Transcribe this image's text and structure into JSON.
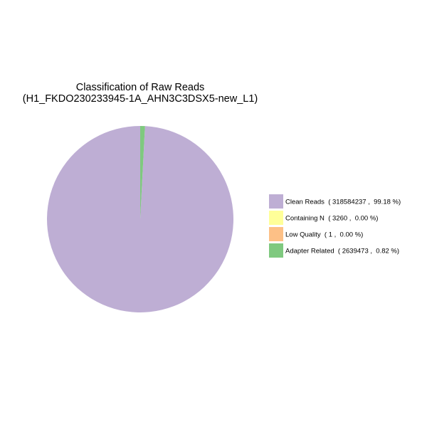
{
  "chart_data": {
    "type": "pie",
    "title": "Classification of Raw Reads",
    "subtitle": "(H1_FKDO230233945-1A_AHN3C3DSX5-new_L1)",
    "legend_position": "right",
    "slices": [
      {
        "label": "Clean Reads",
        "count": 318584237,
        "percent": 99.18,
        "legend_text": "Clean Reads  ( 318584237 ,  99.18 %)",
        "color": "#beaed4"
      },
      {
        "label": "Containing N",
        "count": 3260,
        "percent": 0.0,
        "legend_text": "Containing N  ( 3260 ,  0.00 %)",
        "color": "#ffff99"
      },
      {
        "label": "Low Quality",
        "count": 1,
        "percent": 0.0,
        "legend_text": "Low Quality  ( 1 ,  0.00 %)",
        "color": "#fdc086"
      },
      {
        "label": "Adapter Related",
        "count": 2639473,
        "percent": 0.82,
        "legend_text": "Adapter Related  ( 2639473 ,  0.82 %)",
        "color": "#7fc97f"
      }
    ]
  }
}
